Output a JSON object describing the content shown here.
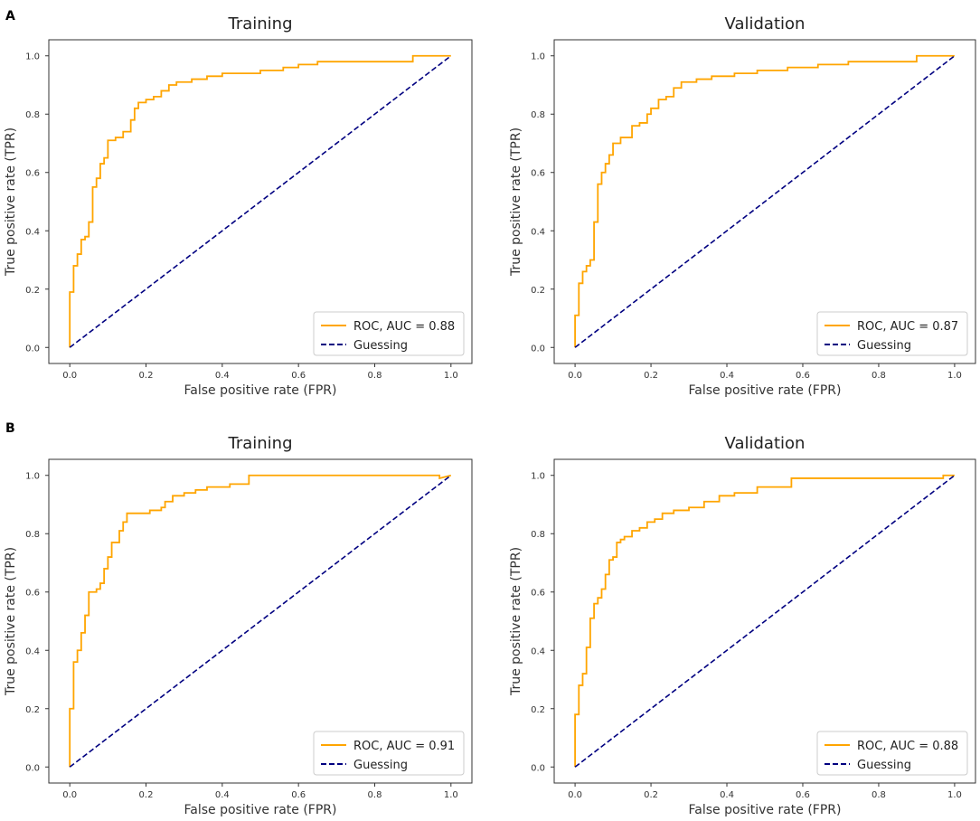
{
  "panel_labels": [
    "A",
    "B"
  ],
  "colors": {
    "roc": "#FFA500",
    "guess": "#000080",
    "frame": "#333333"
  },
  "chart_data": [
    {
      "type": "line",
      "panel": "A",
      "title": "Training",
      "xlabel": "False positive rate (FPR)",
      "ylabel": "True positive rate (TPR)",
      "xlim": [
        0,
        1
      ],
      "ylim": [
        0,
        1
      ],
      "xticks": [
        "0.0",
        "0.2",
        "0.4",
        "0.6",
        "0.8",
        "1.0"
      ],
      "yticks": [
        "0.0",
        "0.2",
        "0.4",
        "0.6",
        "0.8",
        "1.0"
      ],
      "legend": [
        "ROC, AUC = 0.88",
        "Guessing"
      ],
      "legend_position": "lower-right",
      "series": [
        {
          "name": "ROC, AUC = 0.88",
          "style": "solid",
          "x": [
            0,
            0,
            0.01,
            0.01,
            0.02,
            0.02,
            0.03,
            0.03,
            0.04,
            0.04,
            0.05,
            0.05,
            0.06,
            0.06,
            0.07,
            0.07,
            0.08,
            0.08,
            0.09,
            0.09,
            0.1,
            0.1,
            0.12,
            0.12,
            0.14,
            0.14,
            0.16,
            0.16,
            0.17,
            0.17,
            0.18,
            0.18,
            0.2,
            0.2,
            0.22,
            0.22,
            0.24,
            0.24,
            0.26,
            0.26,
            0.28,
            0.28,
            0.32,
            0.32,
            0.36,
            0.36,
            0.4,
            0.4,
            0.5,
            0.5,
            0.56,
            0.56,
            0.6,
            0.6,
            0.65,
            0.65,
            0.9,
            0.9,
            1.0
          ],
          "y": [
            0,
            0.19,
            0.19,
            0.28,
            0.28,
            0.32,
            0.32,
            0.37,
            0.37,
            0.38,
            0.38,
            0.43,
            0.43,
            0.55,
            0.55,
            0.58,
            0.58,
            0.63,
            0.63,
            0.65,
            0.65,
            0.71,
            0.71,
            0.72,
            0.72,
            0.74,
            0.74,
            0.78,
            0.78,
            0.82,
            0.82,
            0.84,
            0.84,
            0.85,
            0.85,
            0.86,
            0.86,
            0.88,
            0.88,
            0.9,
            0.9,
            0.91,
            0.91,
            0.92,
            0.92,
            0.93,
            0.93,
            0.94,
            0.94,
            0.95,
            0.95,
            0.96,
            0.96,
            0.97,
            0.97,
            0.98,
            0.98,
            1.0,
            1.0
          ]
        },
        {
          "name": "Guessing",
          "style": "dashed",
          "x": [
            0,
            1
          ],
          "y": [
            0,
            1
          ]
        }
      ]
    },
    {
      "type": "line",
      "panel": "A",
      "title": "Validation",
      "xlabel": "False positive rate (FPR)",
      "ylabel": "True positive rate (TPR)",
      "xlim": [
        0,
        1
      ],
      "ylim": [
        0,
        1
      ],
      "xticks": [
        "0.0",
        "0.2",
        "0.4",
        "0.6",
        "0.8",
        "1.0"
      ],
      "yticks": [
        "0.0",
        "0.2",
        "0.4",
        "0.6",
        "0.8",
        "1.0"
      ],
      "legend": [
        "ROC, AUC = 0.87",
        "Guessing"
      ],
      "legend_position": "lower-right",
      "series": [
        {
          "name": "ROC, AUC = 0.87",
          "style": "solid",
          "x": [
            0,
            0,
            0.01,
            0.01,
            0.02,
            0.02,
            0.03,
            0.03,
            0.04,
            0.04,
            0.05,
            0.05,
            0.06,
            0.06,
            0.07,
            0.07,
            0.08,
            0.08,
            0.09,
            0.09,
            0.1,
            0.1,
            0.12,
            0.12,
            0.15,
            0.15,
            0.17,
            0.17,
            0.19,
            0.19,
            0.2,
            0.2,
            0.22,
            0.22,
            0.24,
            0.24,
            0.26,
            0.26,
            0.28,
            0.28,
            0.32,
            0.32,
            0.36,
            0.36,
            0.42,
            0.42,
            0.48,
            0.48,
            0.56,
            0.56,
            0.64,
            0.64,
            0.72,
            0.72,
            0.9,
            0.9,
            1.0
          ],
          "y": [
            0,
            0.11,
            0.11,
            0.22,
            0.22,
            0.26,
            0.26,
            0.28,
            0.28,
            0.3,
            0.3,
            0.43,
            0.43,
            0.56,
            0.56,
            0.6,
            0.6,
            0.63,
            0.63,
            0.66,
            0.66,
            0.7,
            0.7,
            0.72,
            0.72,
            0.76,
            0.76,
            0.77,
            0.77,
            0.8,
            0.8,
            0.82,
            0.82,
            0.85,
            0.85,
            0.86,
            0.86,
            0.89,
            0.89,
            0.91,
            0.91,
            0.92,
            0.92,
            0.93,
            0.93,
            0.94,
            0.94,
            0.95,
            0.95,
            0.96,
            0.96,
            0.97,
            0.97,
            0.98,
            0.98,
            1.0,
            1.0
          ]
        },
        {
          "name": "Guessing",
          "style": "dashed",
          "x": [
            0,
            1
          ],
          "y": [
            0,
            1
          ]
        }
      ]
    },
    {
      "type": "line",
      "panel": "B",
      "title": "Training",
      "xlabel": "False positive rate (FPR)",
      "ylabel": "True positive rate (TPR)",
      "xlim": [
        0,
        1
      ],
      "ylim": [
        0,
        1
      ],
      "xticks": [
        "0.0",
        "0.2",
        "0.4",
        "0.6",
        "0.8",
        "1.0"
      ],
      "yticks": [
        "0.0",
        "0.2",
        "0.4",
        "0.6",
        "0.8",
        "1.0"
      ],
      "legend": [
        "ROC, AUC = 0.91",
        "Guessing"
      ],
      "legend_position": "lower-right",
      "series": [
        {
          "name": "ROC, AUC = 0.91",
          "style": "solid",
          "x": [
            0,
            0,
            0.01,
            0.01,
            0.02,
            0.02,
            0.03,
            0.03,
            0.04,
            0.04,
            0.05,
            0.05,
            0.07,
            0.07,
            0.08,
            0.08,
            0.09,
            0.09,
            0.1,
            0.1,
            0.11,
            0.11,
            0.13,
            0.13,
            0.14,
            0.14,
            0.15,
            0.15,
            0.21,
            0.21,
            0.24,
            0.24,
            0.25,
            0.25,
            0.27,
            0.27,
            0.3,
            0.3,
            0.33,
            0.33,
            0.36,
            0.36,
            0.42,
            0.42,
            0.47,
            0.47,
            0.97,
            0.97,
            1.0
          ],
          "y": [
            0,
            0.2,
            0.2,
            0.36,
            0.36,
            0.4,
            0.4,
            0.46,
            0.46,
            0.52,
            0.52,
            0.6,
            0.6,
            0.61,
            0.61,
            0.63,
            0.63,
            0.68,
            0.68,
            0.72,
            0.72,
            0.77,
            0.77,
            0.81,
            0.81,
            0.84,
            0.84,
            0.87,
            0.87,
            0.88,
            0.88,
            0.89,
            0.89,
            0.91,
            0.91,
            0.93,
            0.93,
            0.94,
            0.94,
            0.95,
            0.95,
            0.96,
            0.96,
            0.97,
            0.97,
            1.0,
            1.0,
            0.99,
            1.0
          ]
        },
        {
          "name": "Guessing",
          "style": "dashed",
          "x": [
            0,
            1
          ],
          "y": [
            0,
            1
          ]
        }
      ]
    },
    {
      "type": "line",
      "panel": "B",
      "title": "Validation",
      "xlabel": "False positive rate (FPR)",
      "ylabel": "True positive rate (TPR)",
      "xlim": [
        0,
        1
      ],
      "ylim": [
        0,
        1
      ],
      "xticks": [
        "0.0",
        "0.2",
        "0.4",
        "0.6",
        "0.8",
        "1.0"
      ],
      "yticks": [
        "0.0",
        "0.2",
        "0.4",
        "0.6",
        "0.8",
        "1.0"
      ],
      "legend": [
        "ROC, AUC = 0.88",
        "Guessing"
      ],
      "legend_position": "lower-right",
      "series": [
        {
          "name": "ROC, AUC = 0.88",
          "style": "solid",
          "x": [
            0,
            0,
            0.01,
            0.01,
            0.02,
            0.02,
            0.03,
            0.03,
            0.04,
            0.04,
            0.05,
            0.05,
            0.06,
            0.06,
            0.07,
            0.07,
            0.08,
            0.08,
            0.09,
            0.09,
            0.1,
            0.1,
            0.11,
            0.11,
            0.12,
            0.12,
            0.13,
            0.13,
            0.15,
            0.15,
            0.17,
            0.17,
            0.19,
            0.19,
            0.21,
            0.21,
            0.23,
            0.23,
            0.26,
            0.26,
            0.3,
            0.3,
            0.34,
            0.34,
            0.38,
            0.38,
            0.42,
            0.42,
            0.48,
            0.48,
            0.57,
            0.57,
            0.97,
            0.97,
            1.0
          ],
          "y": [
            0,
            0.18,
            0.18,
            0.28,
            0.28,
            0.32,
            0.32,
            0.41,
            0.41,
            0.51,
            0.51,
            0.56,
            0.56,
            0.58,
            0.58,
            0.61,
            0.61,
            0.66,
            0.66,
            0.71,
            0.71,
            0.72,
            0.72,
            0.77,
            0.77,
            0.78,
            0.78,
            0.79,
            0.79,
            0.81,
            0.81,
            0.82,
            0.82,
            0.84,
            0.84,
            0.85,
            0.85,
            0.87,
            0.87,
            0.88,
            0.88,
            0.89,
            0.89,
            0.91,
            0.91,
            0.93,
            0.93,
            0.94,
            0.94,
            0.96,
            0.96,
            0.99,
            0.99,
            1.0,
            1.0
          ]
        },
        {
          "name": "Guessing",
          "style": "dashed",
          "x": [
            0,
            1
          ],
          "y": [
            0,
            1
          ]
        }
      ]
    }
  ]
}
